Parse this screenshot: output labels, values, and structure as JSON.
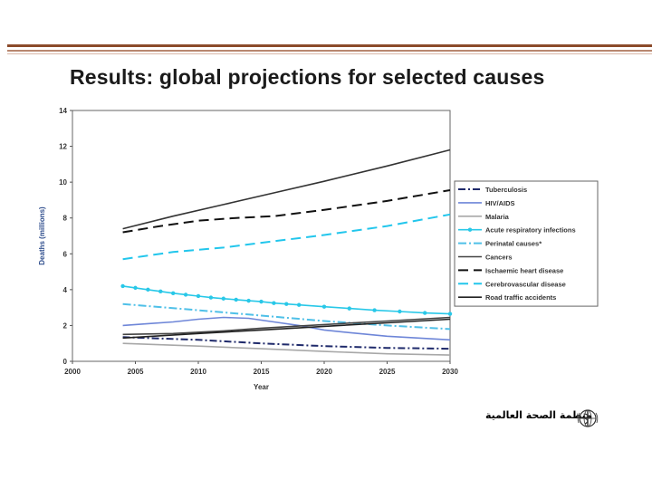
{
  "slide": {
    "title": "Results: global projections for selected causes",
    "footer_text": "منظمة الصحة العالمية",
    "logo_name": "who-emblem"
  },
  "chart_data": {
    "type": "line",
    "title": "",
    "xlabel": "Year",
    "ylabel": "Deaths (millions)",
    "xlim": [
      2000,
      2030
    ],
    "ylim": [
      0,
      14
    ],
    "xticks": [
      2000,
      2005,
      2010,
      2015,
      2020,
      2025,
      2030
    ],
    "yticks": [
      0,
      2,
      4,
      6,
      8,
      10,
      12,
      14
    ],
    "x_tick_labels": [
      "2000",
      "2005",
      "2010",
      "2015",
      "2020",
      "2025",
      "2030"
    ],
    "y_tick_labels": [
      "0",
      "2",
      "4",
      "6",
      "8",
      "10",
      "12",
      "14"
    ],
    "legend_position": "right",
    "series": [
      {
        "name": "Tuberculosis",
        "color": "#1f2a6b",
        "dash": "8,3,2,3",
        "marker": false,
        "x": [
          2004,
          2010,
          2015,
          2020,
          2025,
          2030
        ],
        "values": [
          1.35,
          1.2,
          1.0,
          0.85,
          0.75,
          0.7
        ]
      },
      {
        "name": "HIV/AIDS",
        "color": "#6e86d8",
        "dash": "",
        "marker": false,
        "x": [
          2004,
          2006,
          2008,
          2010,
          2012,
          2014,
          2016,
          2018,
          2020,
          2022,
          2025,
          2030
        ],
        "values": [
          2.0,
          2.1,
          2.2,
          2.35,
          2.45,
          2.4,
          2.2,
          2.0,
          1.75,
          1.6,
          1.4,
          1.2
        ]
      },
      {
        "name": "Malaria",
        "color": "#a8a8a8",
        "dash": "",
        "marker": false,
        "x": [
          2004,
          2010,
          2015,
          2020,
          2025,
          2030
        ],
        "values": [
          1.0,
          0.85,
          0.7,
          0.55,
          0.42,
          0.35
        ]
      },
      {
        "name": "Acute respiratory infections",
        "color": "#28c8e8",
        "dash": "",
        "marker": true,
        "x": [
          2004,
          2005,
          2006,
          2007,
          2008,
          2009,
          2010,
          2011,
          2012,
          2013,
          2014,
          2015,
          2016,
          2017,
          2018,
          2020,
          2022,
          2024,
          2026,
          2028,
          2030
        ],
        "values": [
          4.2,
          4.1,
          4.0,
          3.9,
          3.8,
          3.72,
          3.64,
          3.56,
          3.5,
          3.44,
          3.38,
          3.33,
          3.25,
          3.2,
          3.15,
          3.05,
          2.95,
          2.85,
          2.78,
          2.7,
          2.65
        ]
      },
      {
        "name": "Perinatal causes*",
        "color": "#4fc0e8",
        "dash": "9,3,2,3",
        "marker": false,
        "x": [
          2004,
          2010,
          2015,
          2020,
          2025,
          2030
        ],
        "values": [
          3.2,
          2.85,
          2.55,
          2.25,
          2.0,
          1.8
        ]
      },
      {
        "name": "Cancers",
        "color": "#444444",
        "dash": "",
        "marker": false,
        "x": [
          2004,
          2008,
          2012,
          2015,
          2020,
          2025,
          2030
        ],
        "values": [
          1.5,
          1.55,
          1.7,
          1.85,
          2.05,
          2.25,
          2.45
        ]
      },
      {
        "name": "Ischaemic heart disease",
        "color": "#111111",
        "dash": "11,6",
        "marker": false,
        "x": [
          2004,
          2007,
          2010,
          2013,
          2016,
          2020,
          2025,
          2030
        ],
        "values": [
          7.2,
          7.55,
          7.85,
          8.0,
          8.1,
          8.45,
          8.95,
          9.55
        ]
      },
      {
        "name": "Cerebrovascular disease",
        "color": "#22c6ec",
        "dash": "11,6",
        "marker": false,
        "x": [
          2004,
          2008,
          2012,
          2016,
          2020,
          2025,
          2030
        ],
        "values": [
          5.7,
          6.1,
          6.35,
          6.7,
          7.05,
          7.55,
          8.2
        ]
      },
      {
        "name": "Road traffic accidents",
        "color": "#222222",
        "dash": "",
        "marker": false,
        "x": [
          2004,
          2010,
          2015,
          2020,
          2025,
          2030
        ],
        "values": [
          1.3,
          1.55,
          1.75,
          1.95,
          2.15,
          2.35
        ]
      },
      {
        "name": "Total (top line)",
        "color": "#333333",
        "dash": "",
        "marker": false,
        "in_legend": false,
        "x": [
          2004,
          2008,
          2012,
          2016,
          2020,
          2025,
          2030
        ],
        "values": [
          7.4,
          8.1,
          8.75,
          9.4,
          10.05,
          10.9,
          11.8
        ]
      }
    ]
  }
}
